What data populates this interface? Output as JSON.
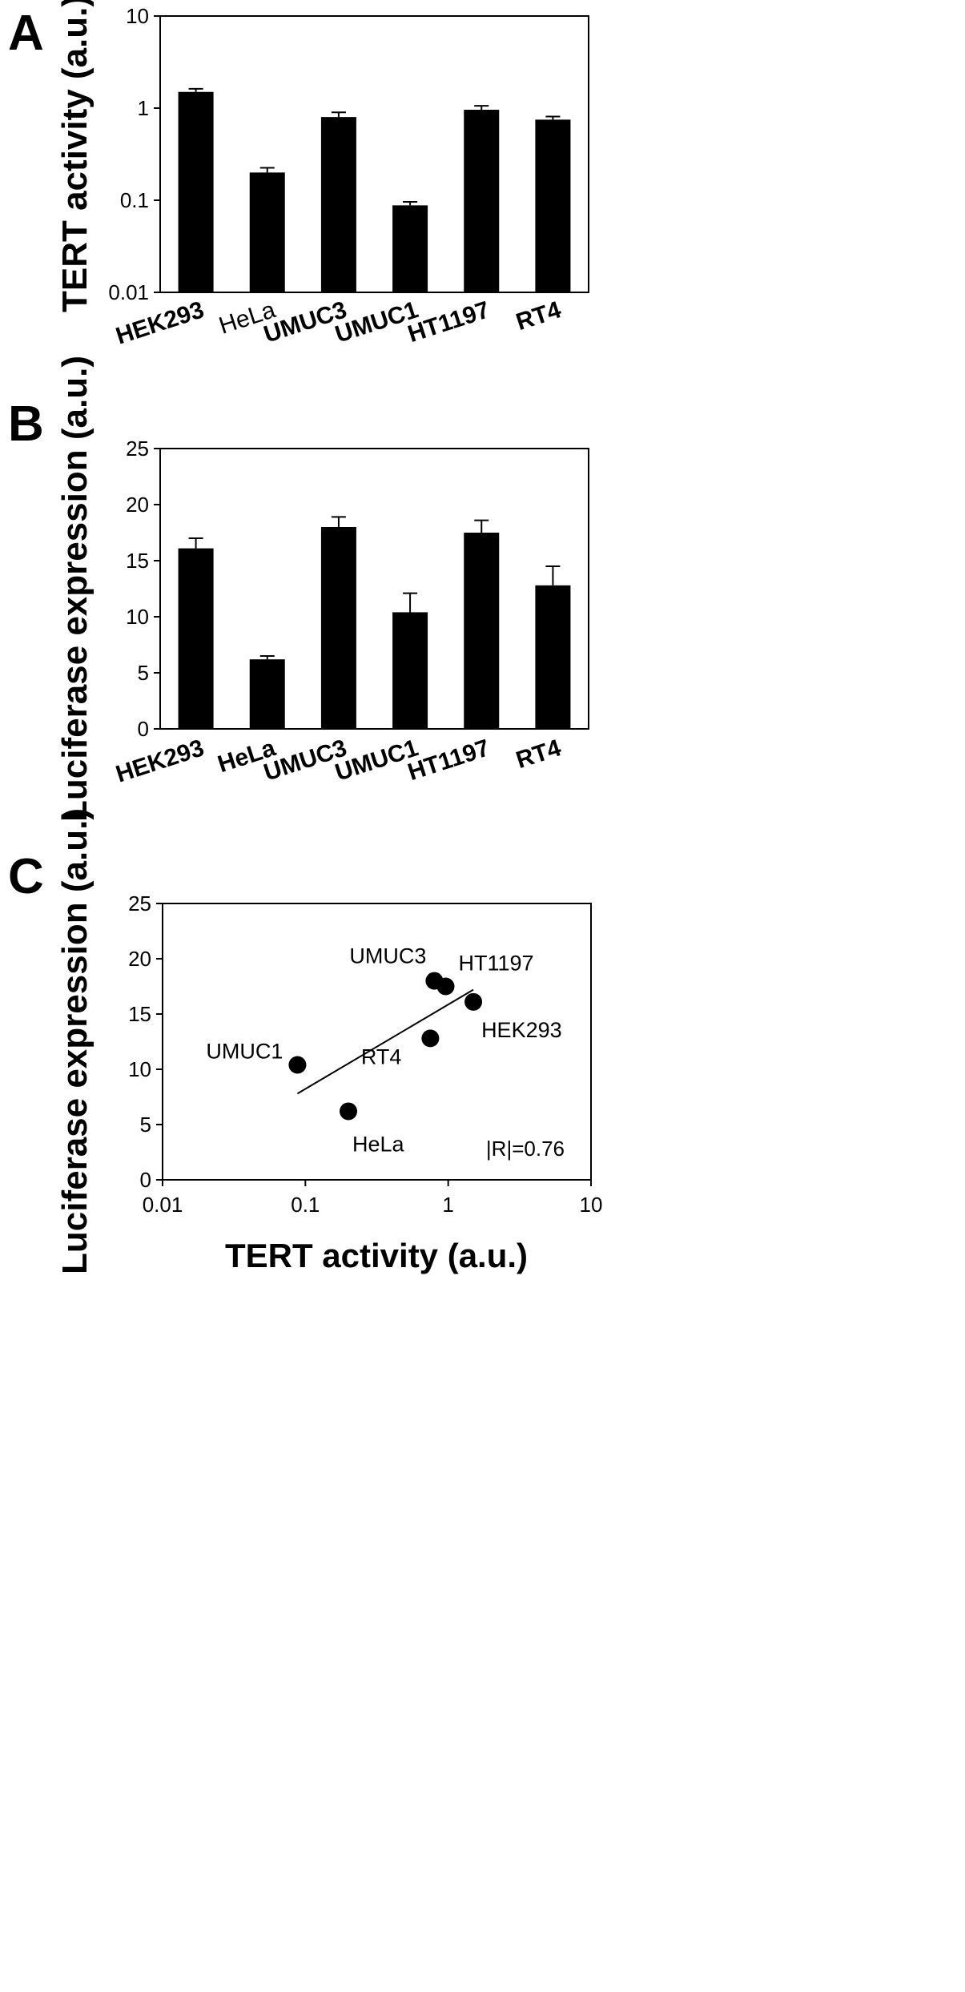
{
  "chart_data": [
    {
      "panel": "A",
      "type": "bar",
      "ylabel": "TERT activity (a.u.)",
      "yscale": "log",
      "ylim": [
        0.01,
        10
      ],
      "yticks": [
        "0.01",
        "0.1",
        "1",
        "10"
      ],
      "categories": [
        "HEK293",
        "HeLa",
        "UMUC3",
        "UMUC1",
        "HT1197",
        "RT4"
      ],
      "values": [
        1.5,
        0.2,
        0.8,
        0.088,
        0.96,
        0.75
      ],
      "errors": [
        0.12,
        0.025,
        0.1,
        0.008,
        0.1,
        0.06
      ],
      "bar_color": "#000000"
    },
    {
      "panel": "B",
      "type": "bar",
      "ylabel": "Luciferase expression (a.u.)",
      "ylim": [
        0,
        25
      ],
      "yticks": [
        "0",
        "5",
        "10",
        "15",
        "20",
        "25"
      ],
      "categories": [
        "HEK293",
        "HeLa",
        "UMUC3",
        "UMUC1",
        "HT1197",
        "RT4"
      ],
      "values": [
        16.1,
        6.2,
        18.0,
        10.4,
        17.5,
        12.8
      ],
      "errors": [
        0.9,
        0.3,
        0.9,
        1.7,
        1.1,
        1.7
      ],
      "bar_color": "#000000"
    },
    {
      "panel": "C",
      "type": "scatter",
      "xlabel": "TERT activity (a.u.)",
      "ylabel": "Luciferase expression (a.u.)",
      "xscale": "log",
      "xlim": [
        0.01,
        10
      ],
      "ylim": [
        0,
        25
      ],
      "xticks": [
        "0.01",
        "0.1",
        "1",
        "10"
      ],
      "yticks": [
        "0",
        "5",
        "10",
        "15",
        "20",
        "25"
      ],
      "points": [
        {
          "label": "HEK293",
          "x": 1.5,
          "y": 16.1
        },
        {
          "label": "HeLa",
          "x": 0.2,
          "y": 6.2
        },
        {
          "label": "UMUC3",
          "x": 0.8,
          "y": 18.0
        },
        {
          "label": "UMUC1",
          "x": 0.088,
          "y": 10.4
        },
        {
          "label": "HT1197",
          "x": 0.96,
          "y": 17.5
        },
        {
          "label": "RT4",
          "x": 0.75,
          "y": 12.8
        }
      ],
      "fit_line": {
        "x": [
          0.088,
          1.5
        ],
        "y": [
          7.8,
          17.2
        ]
      },
      "annotation": "|R|=0.76"
    }
  ]
}
